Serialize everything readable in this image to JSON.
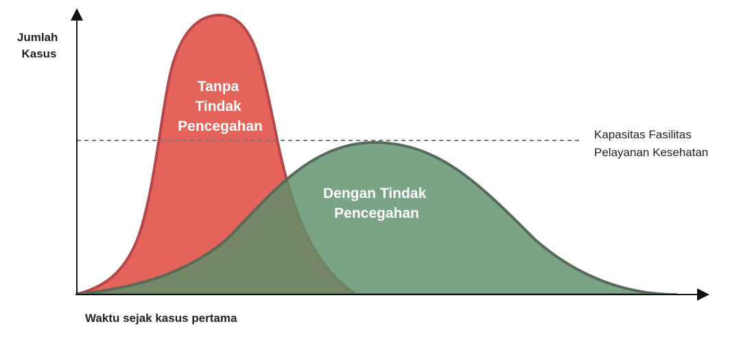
{
  "axes": {
    "y_label_lines": [
      "Jumlah",
      "Kasus"
    ],
    "x_label": "Waktu sejak kasus pertama"
  },
  "capacity": {
    "label_lines": [
      "Kapasitas Fasilitas",
      "Pelayanan Kesehatan"
    ],
    "line_style": "dashed",
    "line_color": "#777777"
  },
  "curves": {
    "without_measures": {
      "label_lines": [
        "Tanpa",
        "Tindak",
        "Pencegahan"
      ],
      "fill": "#e4635a",
      "stroke": "#b5474a"
    },
    "with_measures": {
      "label_lines": [
        "Dengan Tindak",
        "Pencegahan"
      ],
      "fill": "#5e8f6a",
      "fill_opacity": 0.82,
      "stroke": "#566a59"
    }
  },
  "colors": {
    "axis": "#111111",
    "text": "#222222",
    "curve_text": "#ffffff"
  }
}
